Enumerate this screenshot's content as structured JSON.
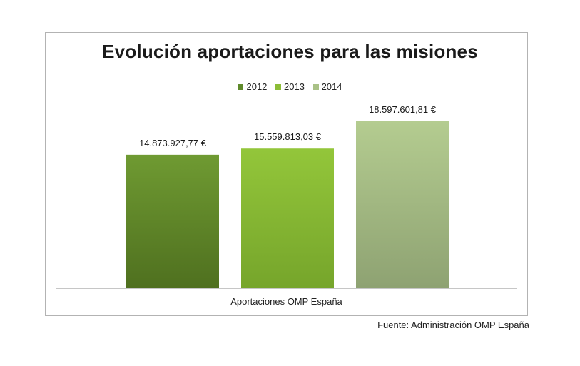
{
  "chart_data": {
    "type": "bar",
    "title": "Evolución aportaciones para las misiones",
    "categories": [
      "Aportaciones OMP España"
    ],
    "series": [
      {
        "name": "2012",
        "values": [
          14873927.77
        ],
        "label": "14.873.927,77 €",
        "color": "#5f8a2b"
      },
      {
        "name": "2013",
        "values": [
          15559813.03
        ],
        "label": "15.559.813,03 €",
        "color": "#8cbd37"
      },
      {
        "name": "2014",
        "values": [
          18597601.81
        ],
        "label": "18.597.601,81 €",
        "color": "#a9c186"
      }
    ],
    "legend_position": "top",
    "grid": false
  },
  "source": "Fuente: Administración OMP España"
}
